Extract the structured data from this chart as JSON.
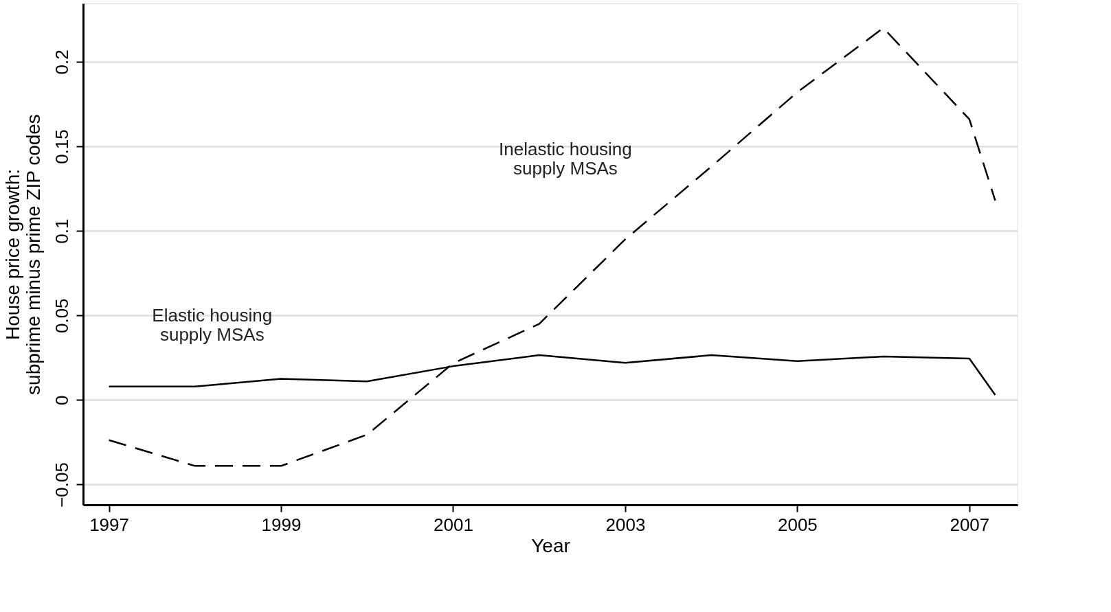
{
  "chart_data": {
    "type": "line",
    "xlabel": "Year",
    "ylabel": "House price growth:\nsubprime minus prime ZIP codes",
    "x": [
      1997,
      1998,
      1999,
      2000,
      2001,
      2002,
      2003,
      2004,
      2005,
      2006,
      2007,
      2007.3
    ],
    "series": [
      {
        "name": "Elastic housing\nsupply MSAs",
        "color": "#000000",
        "line_style": "solid",
        "values": [
          0.008,
          0.008,
          0.0125,
          0.011,
          0.02,
          0.0265,
          0.022,
          0.0265,
          0.023,
          0.0257,
          0.0245,
          0.003
        ]
      },
      {
        "name": "Inelastic housing\nsupply MSAs",
        "color": "#000000",
        "line_style": "dashed",
        "values": [
          -0.0237,
          -0.039,
          -0.039,
          -0.0205,
          0.0217,
          0.045,
          0.095,
          0.138,
          0.182,
          0.22,
          0.166,
          0.118
        ]
      }
    ],
    "xlim": [
      1996.7,
      2007.56
    ],
    "ylim": [
      -0.062,
      0.2345
    ],
    "xticks": [
      1997,
      1999,
      2001,
      2003,
      2005,
      2007
    ],
    "yticks": [
      -0.05,
      0,
      0.05,
      0.1,
      0.15,
      0.2
    ],
    "grid": "y",
    "marker": "none"
  }
}
